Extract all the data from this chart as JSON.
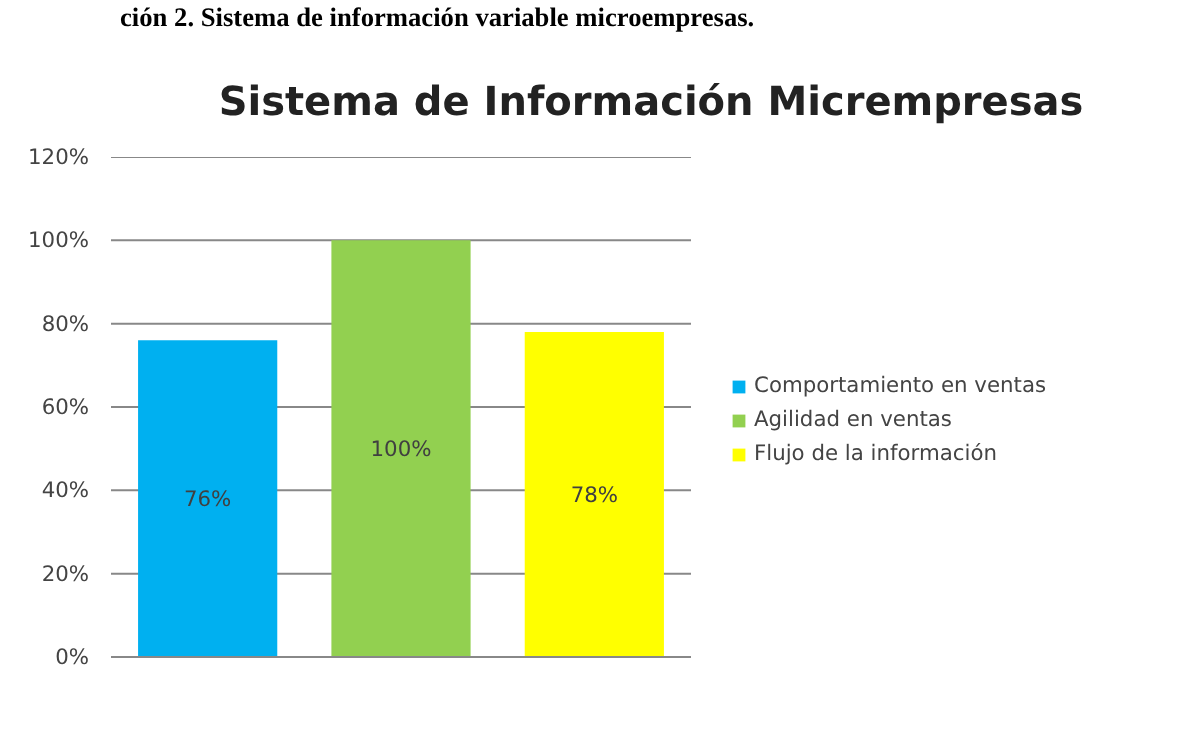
{
  "chart_data": {
    "type": "bar",
    "title": "Sistema de Información Micrempresas",
    "annotations": [
      "ción 2. Sistema de información variable microempresas."
    ],
    "categories": [
      null,
      null,
      null
    ],
    "series": [
      {
        "name": "Comportamiento en ventas",
        "color": "#00b0f0",
        "values": [
          76,
          null,
          null
        ],
        "value_labels": [
          "76%",
          null,
          null
        ]
      },
      {
        "name": "Agilidad en ventas",
        "color": "#92d050",
        "values": [
          null,
          100,
          null
        ],
        "value_labels": [
          null,
          "100%",
          null
        ]
      },
      {
        "name": "Flujo de la información",
        "color": "#ffff00",
        "values": [
          null,
          null,
          78
        ],
        "value_labels": [
          null,
          null,
          "78%"
        ]
      }
    ],
    "ylim": [
      0,
      120
    ],
    "yticks": [
      {
        "value": 0,
        "label": "0%"
      },
      {
        "value": 20,
        "label": "20%"
      },
      {
        "value": 40,
        "label": "40%"
      },
      {
        "value": 60,
        "label": "60%"
      },
      {
        "value": 80,
        "label": "80%"
      },
      {
        "value": 100,
        "label": "100%"
      },
      {
        "value": 120,
        "label": "120%"
      }
    ],
    "grid": "y",
    "legend": "right",
    "tick_labels": "y"
  }
}
